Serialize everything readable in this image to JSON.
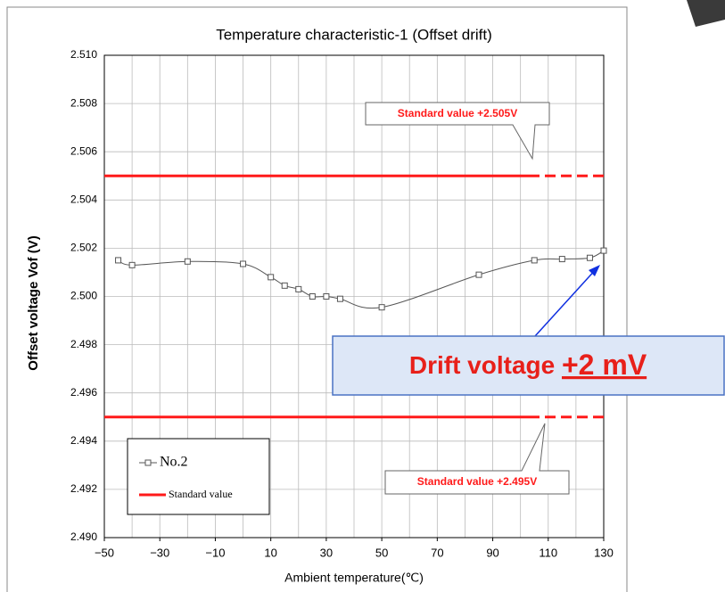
{
  "chart_data": {
    "type": "line",
    "title": "Temperature characteristic-1 (Offset drift)",
    "x_label": "Ambient temperature(℃)",
    "y_label": "Offset voltage Vof (V)",
    "xlim": [
      -50,
      130
    ],
    "ylim": [
      2.49,
      2.51
    ],
    "xticks": [
      {
        "value": -50,
        "label": "−50"
      },
      {
        "value": -30,
        "label": "−30"
      },
      {
        "value": -10,
        "label": "−10"
      },
      10,
      30,
      50,
      70,
      90,
      110,
      130
    ],
    "x_gridlines": [
      -50,
      -40,
      -30,
      -20,
      -10,
      0,
      10,
      20,
      30,
      40,
      50,
      60,
      70,
      80,
      90,
      100,
      110,
      120,
      130
    ],
    "yticks": [
      {
        "value": 2.49,
        "label": "2.490"
      },
      2.492,
      2.494,
      2.496,
      2.498,
      {
        "value": 2.5,
        "label": "2.500"
      },
      2.502,
      2.504,
      2.506,
      2.508,
      {
        "value": 2.51,
        "label": "2.510"
      }
    ],
    "grid": true,
    "legend": "lower left",
    "series": [
      {
        "name": "No.2",
        "color": "#555555",
        "marker": "square",
        "x": [
          -45,
          -40,
          -20,
          0,
          10,
          15,
          20,
          25,
          30,
          35,
          50,
          85,
          105,
          115,
          125,
          130
        ],
        "values": [
          2.5015,
          2.5013,
          2.50145,
          2.50135,
          2.5008,
          2.50045,
          2.5003,
          2.5,
          2.5,
          2.4999,
          2.49955,
          2.5009,
          2.5015,
          2.50155,
          2.5016,
          2.5019
        ]
      }
    ],
    "reference_lines": {
      "name": "Standard value",
      "color": "#ff1a1a",
      "values": [
        2.505,
        2.495
      ]
    },
    "annotations": [
      "Standard value +2.505V",
      "Standard value +2.495V"
    ],
    "drift_note": {
      "text": "Drift voltage ",
      "value_text": "+2 mV"
    }
  }
}
